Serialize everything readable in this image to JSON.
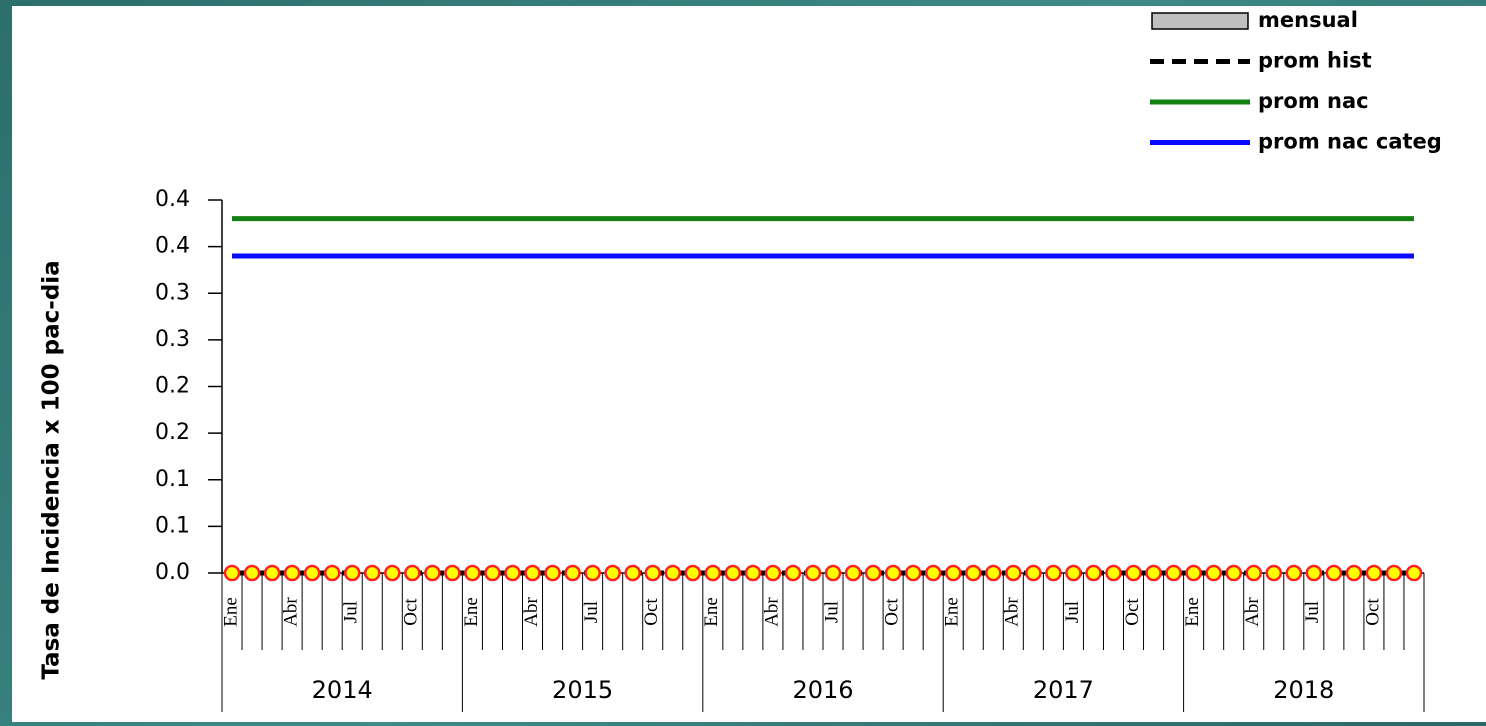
{
  "chart_data": {
    "type": "line",
    "y_label": "Tasa de Incidencia x 100 pac-dia",
    "categories": [
      "Ene",
      null,
      null,
      "Abr",
      null,
      null,
      "Jul",
      null,
      null,
      "Oct",
      null,
      null,
      "Ene",
      null,
      null,
      "Abr",
      null,
      null,
      "Jul",
      null,
      null,
      "Oct",
      null,
      null,
      "Ene",
      null,
      null,
      "Abr",
      null,
      null,
      "Jul",
      null,
      null,
      "Oct",
      null,
      null,
      "Ene",
      null,
      null,
      "Abr",
      null,
      null,
      "Jul",
      null,
      null,
      "Oct",
      null,
      null,
      "Ene",
      null,
      null,
      "Abr",
      null,
      null,
      "Jul",
      null,
      null,
      "Oct",
      null,
      null
    ],
    "groups": [
      "2014",
      "2015",
      "2016",
      "2017",
      "2018"
    ],
    "series": [
      {
        "name": "mensual",
        "kind": "bar",
        "color": "#c0c0c0",
        "values": [
          0,
          0,
          0,
          0,
          0,
          0,
          0,
          0,
          0,
          0,
          0,
          0,
          0,
          0,
          0,
          0,
          0,
          0,
          0,
          0,
          0,
          0,
          0,
          0,
          0,
          0,
          0,
          0,
          0,
          0,
          0,
          0,
          0,
          0,
          0,
          0,
          0,
          0,
          0,
          0,
          0,
          0,
          0,
          0,
          0,
          0,
          0,
          0,
          0,
          0,
          0,
          0,
          0,
          0,
          0,
          0,
          0,
          0,
          0,
          0
        ]
      },
      {
        "name": "prom hist",
        "kind": "constant",
        "dash": true,
        "color": "#000000",
        "value": 0
      },
      {
        "name": "prom nac",
        "kind": "constant",
        "color": "#138013",
        "value": 0.38
      },
      {
        "name": "prom nac categ",
        "kind": "constant",
        "color": "#0a0aff",
        "value": 0.34
      },
      {
        "kind": "marker",
        "color": "#ffff00",
        "edge": "#ff2020",
        "values": [
          0,
          0,
          0,
          0,
          0,
          0,
          0,
          0,
          0,
          0,
          0,
          0,
          0,
          0,
          0,
          0,
          0,
          0,
          0,
          0,
          0,
          0,
          0,
          0,
          0,
          0,
          0,
          0,
          0,
          0,
          0,
          0,
          0,
          0,
          0,
          0,
          0,
          0,
          0,
          0,
          0,
          0,
          0,
          0,
          0,
          0,
          0,
          0,
          0,
          0,
          0,
          0,
          0,
          0,
          0,
          0,
          0,
          0,
          0,
          0
        ]
      }
    ],
    "ylim": [
      0,
      0.4
    ],
    "yticks": [
      {
        "value": 0,
        "label": "0.0"
      },
      {
        "value": 0.05,
        "label": "0.1"
      },
      0.1,
      {
        "value": 0.15,
        "label": "0.2"
      },
      0.2,
      {
        "value": 0.25,
        "label": "0.3"
      },
      0.3,
      {
        "value": 0.35,
        "label": "0.4"
      },
      0.4
    ],
    "legend": "top-right"
  }
}
